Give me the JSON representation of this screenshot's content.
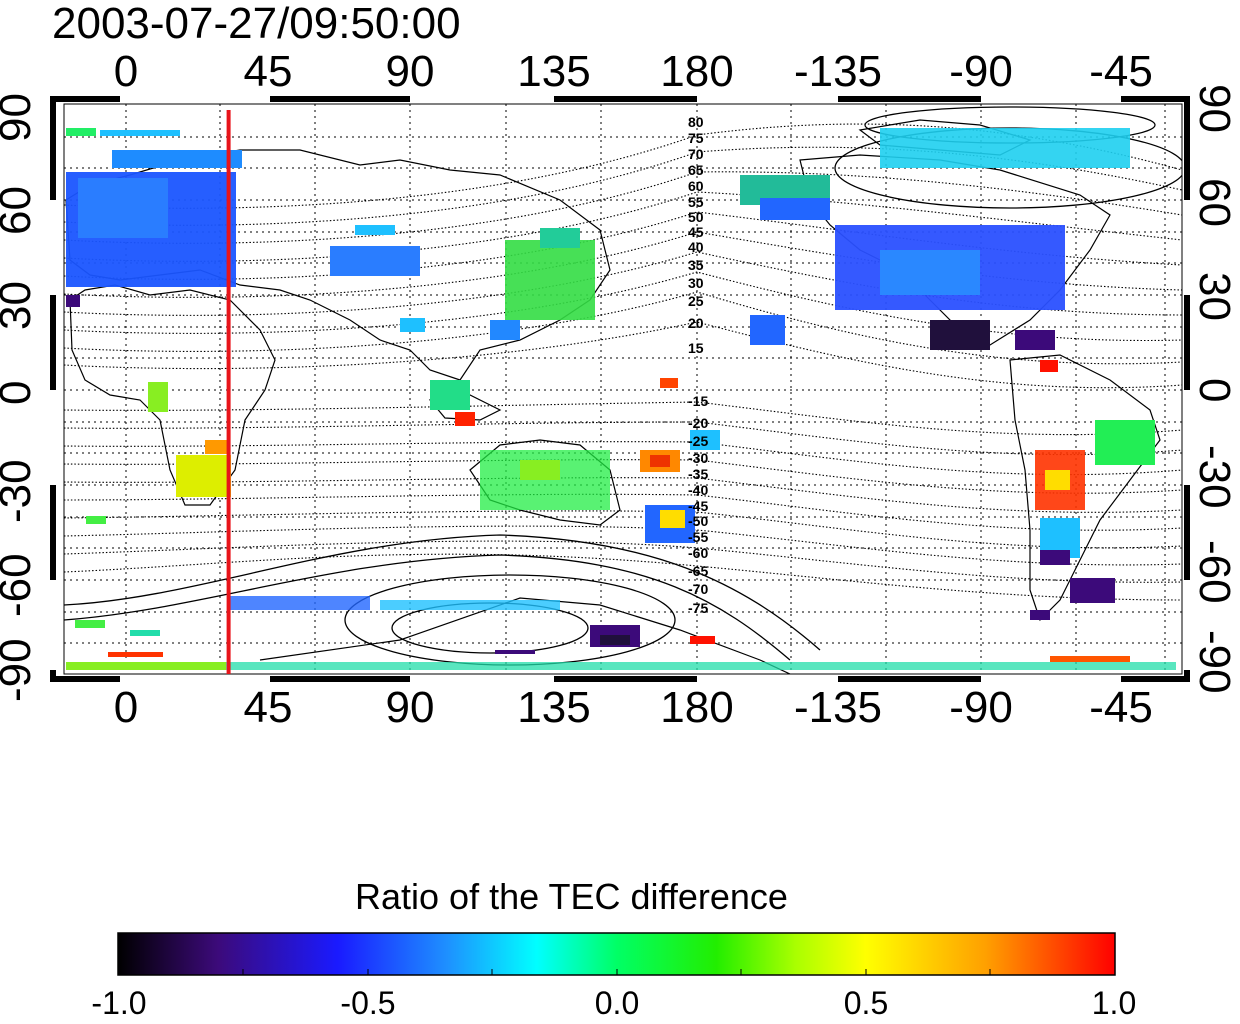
{
  "title": "2003-07-27/09:50:00",
  "longitude_ticks": [
    "0",
    "45",
    "90",
    "135",
    "180",
    "-135",
    "-90",
    "-45"
  ],
  "latitude_ticks": [
    "90",
    "60",
    "30",
    "0",
    "-30",
    "-60",
    "-90"
  ],
  "contour_labels_north": [
    "80",
    "75",
    "70",
    "65",
    "60",
    "55",
    "50",
    "45",
    "40",
    "35",
    "30",
    "25",
    "20",
    "15"
  ],
  "contour_labels_south": [
    "-15",
    "-20",
    "-25",
    "-30",
    "-35",
    "-40",
    "-45",
    "-50",
    "-55",
    "-60",
    "-65",
    "-70",
    "-75"
  ],
  "marker_line": {
    "longitude_deg": 33,
    "color": "#e8141a"
  },
  "colorbar": {
    "title": "Ratio of the TEC difference",
    "labels": [
      "-1.0",
      "-0.5",
      "0.0",
      "0.5",
      "1.0"
    ],
    "range": [
      -1.0,
      1.0
    ],
    "colors": [
      "#000000",
      "#3c0a7a",
      "#1a1aff",
      "#1e90ff",
      "#00ffff",
      "#00ff66",
      "#22ee00",
      "#aaff00",
      "#ffff00",
      "#ffa000",
      "#ff0000"
    ]
  },
  "map": {
    "projection": "equirectangular",
    "lon_start": -20,
    "lat_range": [
      -90,
      90
    ],
    "grid": "dotted"
  }
}
